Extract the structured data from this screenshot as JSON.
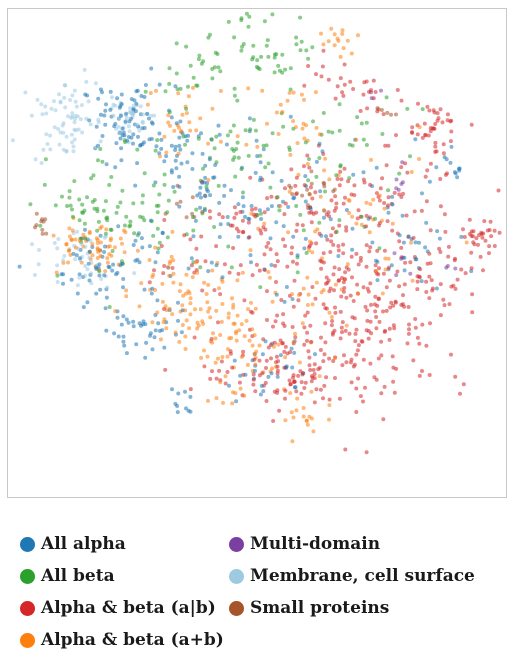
{
  "chart_data": {
    "type": "scatter",
    "title": "",
    "xlabel": "",
    "ylabel": "",
    "grid": false,
    "axes_visible": false,
    "legend_placement": "bottom",
    "series": [
      {
        "name": "All alpha",
        "color": "#1f77b4",
        "clusters": [
          {
            "cx": -0.55,
            "cy": 0.62,
            "sx": 0.1,
            "sy": 0.08,
            "n": 70
          },
          {
            "cx": -0.35,
            "cy": 0.45,
            "sx": 0.12,
            "sy": 0.1,
            "n": 55
          },
          {
            "cx": -0.62,
            "cy": -0.05,
            "sx": 0.12,
            "sy": 0.1,
            "n": 60
          },
          {
            "cx": -0.48,
            "cy": -0.35,
            "sx": 0.08,
            "sy": 0.07,
            "n": 40
          },
          {
            "cx": -0.15,
            "cy": 0.15,
            "sx": 0.18,
            "sy": 0.16,
            "n": 60
          },
          {
            "cx": 0.05,
            "cy": -0.55,
            "sx": 0.1,
            "sy": 0.07,
            "n": 30
          },
          {
            "cx": 0.6,
            "cy": 0.05,
            "sx": 0.12,
            "sy": 0.12,
            "n": 35
          },
          {
            "cx": 0.82,
            "cy": 0.4,
            "sx": 0.04,
            "sy": 0.04,
            "n": 10
          },
          {
            "cx": -0.3,
            "cy": -0.7,
            "sx": 0.05,
            "sy": 0.04,
            "n": 10
          },
          {
            "cx": 0.1,
            "cy": 0.3,
            "sx": 0.25,
            "sy": 0.2,
            "n": 50
          }
        ]
      },
      {
        "name": "All beta",
        "color": "#2ca02c",
        "clusters": [
          {
            "cx": 0.02,
            "cy": 1.15,
            "sx": 0.12,
            "sy": 0.05,
            "n": 55
          },
          {
            "cx": -0.25,
            "cy": 0.85,
            "sx": 0.1,
            "sy": 0.08,
            "n": 35
          },
          {
            "cx": 0.1,
            "cy": 0.92,
            "sx": 0.08,
            "sy": 0.06,
            "n": 30
          },
          {
            "cx": -0.45,
            "cy": 0.2,
            "sx": 0.15,
            "sy": 0.15,
            "n": 60
          },
          {
            "cx": -0.75,
            "cy": 0.15,
            "sx": 0.1,
            "sy": 0.1,
            "n": 40
          },
          {
            "cx": 0.1,
            "cy": 0.2,
            "sx": 0.2,
            "sy": 0.15,
            "n": 40
          },
          {
            "cx": 0.4,
            "cy": 0.55,
            "sx": 0.15,
            "sy": 0.1,
            "n": 25
          },
          {
            "cx": -0.1,
            "cy": 0.5,
            "sx": 0.15,
            "sy": 0.1,
            "n": 30
          }
        ]
      },
      {
        "name": "Alpha & beta (a|b)",
        "color": "#d62728",
        "clusters": [
          {
            "cx": 0.45,
            "cy": -0.25,
            "sx": 0.22,
            "sy": 0.2,
            "n": 220
          },
          {
            "cx": 0.15,
            "cy": -0.55,
            "sx": 0.2,
            "sy": 0.1,
            "n": 110
          },
          {
            "cx": 0.3,
            "cy": 0.25,
            "sx": 0.1,
            "sy": 0.08,
            "n": 35
          },
          {
            "cx": -0.05,
            "cy": 0.15,
            "sx": 0.05,
            "sy": 0.05,
            "n": 25
          },
          {
            "cx": 0.75,
            "cy": 0.6,
            "sx": 0.06,
            "sy": 0.05,
            "n": 35
          },
          {
            "cx": 0.95,
            "cy": 0.08,
            "sx": 0.04,
            "sy": 0.04,
            "n": 30
          },
          {
            "cx": 0.6,
            "cy": 0.25,
            "sx": 0.12,
            "sy": 0.12,
            "n": 50
          },
          {
            "cx": 0.5,
            "cy": 0.75,
            "sx": 0.05,
            "sy": 0.05,
            "n": 15
          },
          {
            "cx": 0.3,
            "cy": 0.8,
            "sx": 0.06,
            "sy": 0.05,
            "n": 15
          },
          {
            "cx": -0.25,
            "cy": -0.1,
            "sx": 0.15,
            "sy": 0.15,
            "n": 25
          },
          {
            "cx": 0.2,
            "cy": 0.0,
            "sx": 0.2,
            "sy": 0.2,
            "n": 60
          },
          {
            "cx": 0.75,
            "cy": -0.1,
            "sx": 0.1,
            "sy": 0.1,
            "n": 30
          }
        ]
      },
      {
        "name": "Alpha & beta (a+b)",
        "color": "#ff7f0e",
        "clusters": [
          {
            "cx": -0.72,
            "cy": 0.02,
            "sx": 0.08,
            "sy": 0.06,
            "n": 60
          },
          {
            "cx": -0.05,
            "cy": -0.5,
            "sx": 0.15,
            "sy": 0.1,
            "n": 50
          },
          {
            "cx": -0.3,
            "cy": 0.6,
            "sx": 0.1,
            "sy": 0.1,
            "n": 30
          },
          {
            "cx": 0.35,
            "cy": 1.0,
            "sx": 0.04,
            "sy": 0.04,
            "n": 15
          },
          {
            "cx": -0.25,
            "cy": -0.2,
            "sx": 0.1,
            "sy": 0.1,
            "n": 35
          },
          {
            "cx": -0.05,
            "cy": -0.25,
            "sx": 0.2,
            "sy": 0.15,
            "n": 60
          },
          {
            "cx": 0.4,
            "cy": 0.1,
            "sx": 0.2,
            "sy": 0.2,
            "n": 60
          },
          {
            "cx": -0.45,
            "cy": -0.15,
            "sx": 0.1,
            "sy": 0.1,
            "n": 25
          },
          {
            "cx": 0.15,
            "cy": 0.6,
            "sx": 0.1,
            "sy": 0.1,
            "n": 25
          },
          {
            "cx": 0.2,
            "cy": -0.78,
            "sx": 0.06,
            "sy": 0.04,
            "n": 15
          }
        ]
      },
      {
        "name": "Multi-domain",
        "color": "#7b3fa0",
        "clusters": [
          {
            "cx": 0.5,
            "cy": 0.75,
            "sx": 0.02,
            "sy": 0.02,
            "n": 3
          },
          {
            "cx": 0.62,
            "cy": 0.35,
            "sx": 0.03,
            "sy": 0.03,
            "n": 6
          },
          {
            "cx": 0.6,
            "cy": -0.05,
            "sx": 0.03,
            "sy": 0.03,
            "n": 5
          },
          {
            "cx": 0.82,
            "cy": -0.05,
            "sx": 0.02,
            "sy": 0.02,
            "n": 3
          }
        ]
      },
      {
        "name": "Membrane, cell surface",
        "color": "#9ecae1",
        "clusters": [
          {
            "cx": -0.82,
            "cy": 0.62,
            "sx": 0.07,
            "sy": 0.1,
            "n": 70
          },
          {
            "cx": -0.55,
            "cy": 0.63,
            "sx": 0.06,
            "sy": 0.04,
            "n": 40
          },
          {
            "cx": -0.74,
            "cy": 0.0,
            "sx": 0.08,
            "sy": 0.08,
            "n": 40
          }
        ]
      },
      {
        "name": "Small proteins",
        "color": "#a6542a",
        "clusters": [
          {
            "cx": -0.92,
            "cy": 0.15,
            "sx": 0.02,
            "sy": 0.03,
            "n": 10
          },
          {
            "cx": 0.55,
            "cy": 0.65,
            "sx": 0.02,
            "sy": 0.02,
            "n": 5
          },
          {
            "cx": 0.2,
            "cy": 0.3,
            "sx": 0.05,
            "sy": 0.05,
            "n": 15
          },
          {
            "cx": -0.3,
            "cy": 0.25,
            "sx": 0.05,
            "sy": 0.05,
            "n": 10
          }
        ]
      }
    ]
  },
  "legend": {
    "items": [
      {
        "label": "All alpha",
        "color": "#1f77b4"
      },
      {
        "label": "All beta",
        "color": "#2ca02c"
      },
      {
        "label": "Alpha & beta (a|b)",
        "color": "#d62728"
      },
      {
        "label": "Alpha & beta (a+b)",
        "color": "#ff7f0e"
      },
      {
        "label": "Multi-domain",
        "color": "#7b3fa0"
      },
      {
        "label": "Membrane, cell surface",
        "color": "#9ecae1"
      },
      {
        "label": "Small proteins",
        "color": "#a6542a"
      }
    ]
  }
}
